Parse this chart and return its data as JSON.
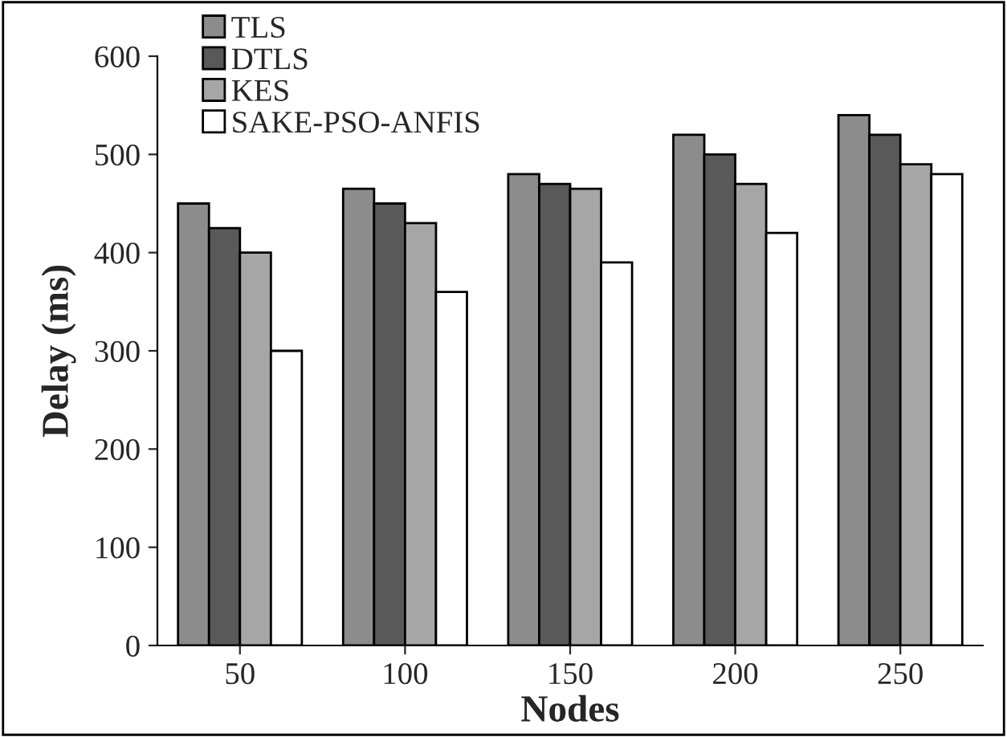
{
  "chart_data": {
    "type": "bar",
    "xlabel": "Nodes",
    "ylabel": "Delay (ms)",
    "categories": [
      "50",
      "100",
      "150",
      "200",
      "250"
    ],
    "series": [
      {
        "name": "TLS",
        "color": "#8c8c8c",
        "values": [
          450,
          465,
          480,
          520,
          540
        ]
      },
      {
        "name": "DTLS",
        "color": "#595959",
        "values": [
          425,
          450,
          470,
          500,
          520
        ]
      },
      {
        "name": "KES",
        "color": "#a6a6a6",
        "values": [
          400,
          430,
          465,
          470,
          490
        ]
      },
      {
        "name": "SAKE-PSO-ANFIS",
        "color": "#ffffff",
        "values": [
          300,
          360,
          390,
          420,
          480
        ]
      }
    ],
    "ylim": [
      0,
      600
    ],
    "yticks": [
      0,
      100,
      200,
      300,
      400,
      500,
      600
    ],
    "legend": "top left",
    "grid": false
  }
}
